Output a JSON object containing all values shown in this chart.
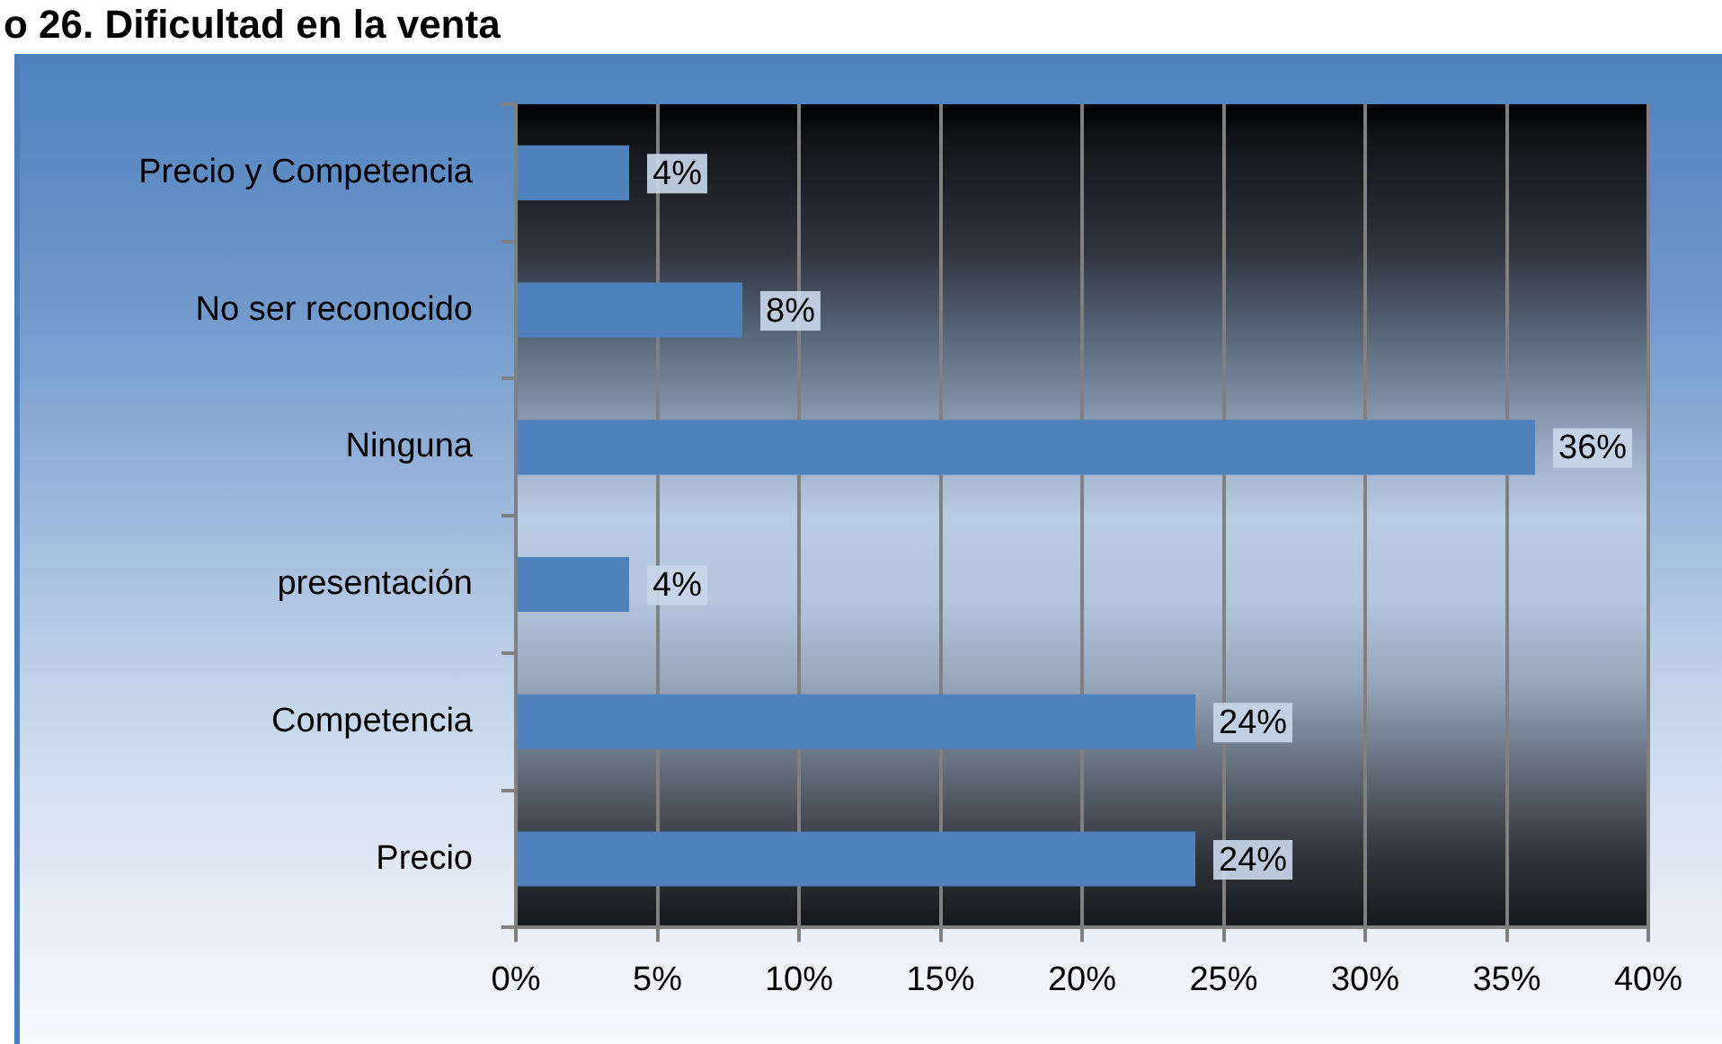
{
  "chart_data": {
    "type": "bar",
    "orientation": "horizontal",
    "title": "o 26. Dificultad en la venta",
    "categories": [
      "Precio y Competencia",
      "No ser reconocido",
      "Ninguna",
      "presentación",
      "Competencia",
      "Precio"
    ],
    "values": [
      4,
      8,
      36,
      4,
      24,
      24
    ],
    "value_labels": [
      "4%",
      "8%",
      "36%",
      "4%",
      "24%",
      "24%"
    ],
    "color": "#4f81bd",
    "xlim": [
      0,
      40
    ],
    "xticks": [
      {
        "value": 0,
        "label": "0%"
      },
      {
        "value": 5,
        "label": "5%"
      },
      {
        "value": 10,
        "label": "10%"
      },
      {
        "value": 15,
        "label": "15%"
      },
      {
        "value": 20,
        "label": "20%"
      },
      {
        "value": 25,
        "label": "25%"
      },
      {
        "value": 30,
        "label": "30%"
      },
      {
        "value": 35,
        "label": "35%"
      },
      {
        "value": 40,
        "label": "40%"
      }
    ],
    "grid": "x"
  }
}
